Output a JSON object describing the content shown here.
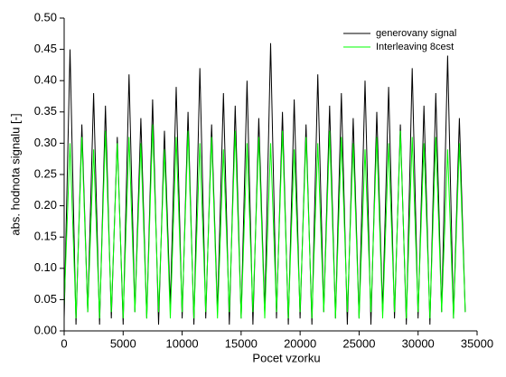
{
  "chart_data": {
    "type": "line",
    "x_label": "Pocet vzorku",
    "y_label": "abs. hodnota signalu [-]",
    "x": [
      0,
      500,
      1000,
      1500,
      2000,
      2500,
      3000,
      3500,
      4000,
      4500,
      5000,
      5500,
      6000,
      6500,
      7000,
      7500,
      8000,
      8500,
      9000,
      9500,
      10000,
      10500,
      11000,
      11500,
      12000,
      12500,
      13000,
      13500,
      14000,
      14500,
      15000,
      15500,
      16000,
      16500,
      17000,
      17500,
      18000,
      18500,
      19000,
      19500,
      20000,
      20500,
      21000,
      21500,
      22000,
      22500,
      23000,
      23500,
      24000,
      24500,
      25000,
      25500,
      26000,
      26500,
      27000,
      27500,
      28000,
      28500,
      29000,
      29500,
      30000,
      30500,
      31000,
      31500,
      32000,
      32500,
      33000,
      33500,
      34000
    ],
    "series": [
      {
        "name": "generovany signal",
        "color": "#000000",
        "values": [
          0.02,
          0.45,
          0.01,
          0.33,
          0.03,
          0.38,
          0.01,
          0.36,
          0.02,
          0.31,
          0.01,
          0.41,
          0.03,
          0.34,
          0.02,
          0.37,
          0.01,
          0.32,
          0.04,
          0.39,
          0.02,
          0.35,
          0.01,
          0.42,
          0.02,
          0.33,
          0.03,
          0.38,
          0.01,
          0.36,
          0.02,
          0.4,
          0.01,
          0.34,
          0.03,
          0.46,
          0.02,
          0.35,
          0.01,
          0.37,
          0.02,
          0.33,
          0.01,
          0.41,
          0.03,
          0.36,
          0.02,
          0.38,
          0.01,
          0.34,
          0.02,
          0.4,
          0.01,
          0.35,
          0.03,
          0.39,
          0.02,
          0.33,
          0.01,
          0.42,
          0.02,
          0.36,
          0.01,
          0.38,
          0.03,
          0.44,
          0.02,
          0.34,
          0.03
        ]
      },
      {
        "name": "Interleaving 8cest",
        "color": "#00ff00",
        "values": [
          0.04,
          0.3,
          0.02,
          0.31,
          0.03,
          0.29,
          0.02,
          0.32,
          0.03,
          0.3,
          0.02,
          0.31,
          0.03,
          0.3,
          0.02,
          0.33,
          0.03,
          0.29,
          0.02,
          0.31,
          0.03,
          0.32,
          0.02,
          0.3,
          0.03,
          0.31,
          0.02,
          0.29,
          0.03,
          0.32,
          0.02,
          0.3,
          0.03,
          0.31,
          0.02,
          0.3,
          0.03,
          0.32,
          0.02,
          0.29,
          0.03,
          0.31,
          0.02,
          0.3,
          0.03,
          0.32,
          0.02,
          0.31,
          0.03,
          0.3,
          0.02,
          0.29,
          0.03,
          0.31,
          0.02,
          0.3,
          0.03,
          0.32,
          0.02,
          0.31,
          0.03,
          0.3,
          0.02,
          0.31,
          0.03,
          0.29,
          0.02,
          0.3,
          0.03
        ]
      }
    ],
    "xlim": [
      0,
      35000
    ],
    "xticks": [
      0,
      5000,
      10000,
      15000,
      20000,
      25000,
      30000,
      35000
    ],
    "ylim": [
      0,
      0.5
    ],
    "yticks": [
      {
        "value": 0,
        "label": "0.00"
      },
      0.05,
      {
        "value": 0.1,
        "label": "0.10"
      },
      0.15,
      {
        "value": 0.2,
        "label": "0.20"
      },
      0.25,
      {
        "value": 0.3,
        "label": "0.30"
      },
      0.35,
      {
        "value": 0.4,
        "label": "0.40"
      },
      0.45,
      {
        "value": 0.5,
        "label": "0.50"
      }
    ],
    "legend": "top-right"
  }
}
